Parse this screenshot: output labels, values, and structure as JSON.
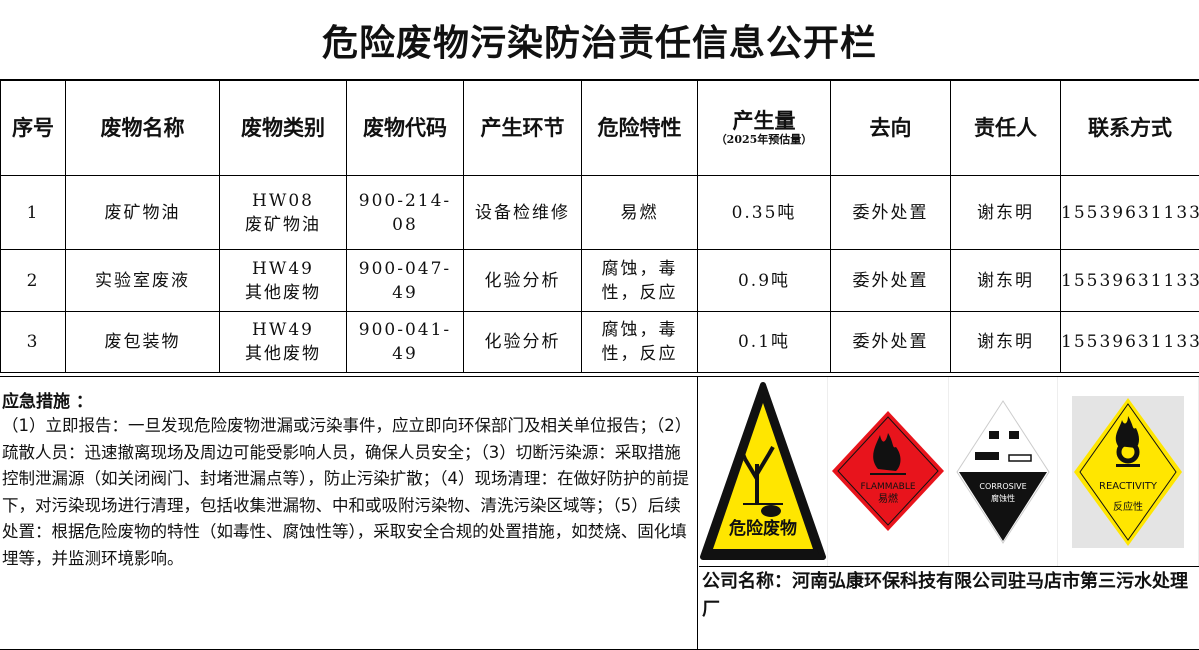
{
  "title": "危险废物污染防治责任信息公开栏",
  "table": {
    "headers": [
      "序号",
      "废物名称",
      "废物类别",
      "废物代码",
      "产生环节",
      "危险特性",
      "产生量",
      "去向",
      "责任人",
      "联系方式"
    ],
    "amount_subheader": "（2025年预估量）",
    "rows": [
      {
        "no": "1",
        "name": "废矿物油",
        "category_code": "HW08",
        "category_name": "废矿物油",
        "code": "900-214-08",
        "stage": "设备检维修",
        "hazard": "易燃",
        "amount": "0.35吨",
        "destination": "委外处置",
        "person": "谢东明",
        "contact": "15539631133"
      },
      {
        "no": "2",
        "name": "实验室废液",
        "category_code": "HW49",
        "category_name": "其他废物",
        "code": "900-047-49",
        "stage": "化验分析",
        "hazard": "腐蚀，毒性，反应",
        "amount": "0.9吨",
        "destination": "委外处置",
        "person": "谢东明",
        "contact": "15539631133"
      },
      {
        "no": "3",
        "name": "废包装物",
        "category_code": "HW49",
        "category_name": "其他废物",
        "code": "900-041-49",
        "stage": "化验分析",
        "hazard": "腐蚀，毒性，反应",
        "amount": "0.1吨",
        "destination": "委外处置",
        "person": "谢东明",
        "contact": "15539631133"
      }
    ]
  },
  "emergency": {
    "heading": "应急措施 ：",
    "text": "（1）立即报告：一旦发现危险废物泄漏或污染事件，应立即向环保部门及相关单位报告；（2）疏散人员：迅速撤离现场及周边可能受影响人员，确保人员安全；（3）切断污染源：采取措施控制泄漏源（如关闭阀门、封堵泄漏点等），防止污染扩散；（4）现场清理：在做好防护的前提下，对污染现场进行清理，包括收集泄漏物、中和或吸附污染物、清洗污染区域等；（5）后续处置：根据危险废物的特性（如毒性、腐蚀性等），采取安全合规的处置措施，如焚烧、固化填埋等，并监测环境影响。"
  },
  "signs": [
    {
      "icon": "hazardous-waste-sign-icon",
      "label": "危险废物",
      "color": "#ffe600"
    },
    {
      "icon": "flammable-sign-icon",
      "label_en": "FLAMMABLE",
      "label": "易燃",
      "color": "#e8141c"
    },
    {
      "icon": "corrosive-sign-icon",
      "label_en": "CORROSIVE",
      "label": "腐蚀性",
      "color": "#111111"
    },
    {
      "icon": "reactivity-sign-icon",
      "label_en": "REACTIVITY",
      "label": "反应性",
      "color": "#ffe600"
    }
  ],
  "company": "公司名称：河南弘康环保科技有限公司驻马店市第三污水处理厂"
}
